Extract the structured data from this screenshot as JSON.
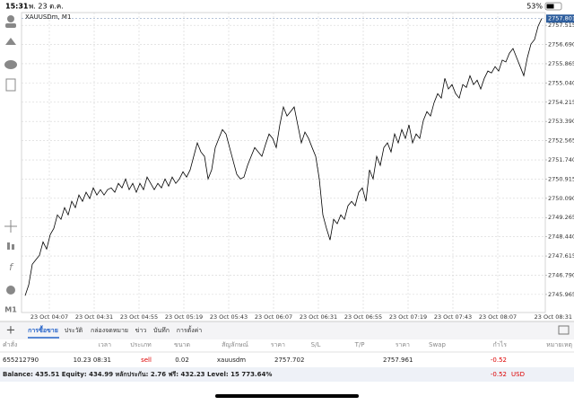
{
  "status_bar": {
    "time": "15:31",
    "date": "พ. 23 ต.ค.",
    "battery": "53%"
  },
  "chart_data": {
    "type": "line",
    "title": "XAUUSDm, M1",
    "color": "#000000",
    "grid": true,
    "x_labels": [
      "23 Oct 04:07",
      "23 Oct 04:31",
      "23 Oct 04:55",
      "23 Oct 05:19",
      "23 Oct 05:43",
      "23 Oct 06:07",
      "23 Oct 06:31",
      "23 Oct 06:55",
      "23 Oct 07:19",
      "23 Oct 07:43",
      "23 Oct 08:07",
      "23 Oct 08:31"
    ],
    "values": [
      2745.91,
      2746.37,
      2747.26,
      2747.45,
      2747.65,
      2748.22,
      2747.91,
      2748.53,
      2748.8,
      2749.38,
      2749.19,
      2749.69,
      2749.38,
      2749.96,
      2749.69,
      2750.23,
      2749.96,
      2750.35,
      2750.08,
      2750.54,
      2750.23,
      2750.46,
      2750.23,
      2750.46,
      2750.54,
      2750.35,
      2750.73,
      2750.54,
      2750.92,
      2750.46,
      2750.73,
      2750.35,
      2750.73,
      2750.46,
      2751.0,
      2750.73,
      2750.46,
      2750.73,
      2750.54,
      2750.92,
      2750.61,
      2751.0,
      2750.73,
      2750.92,
      2751.23,
      2751.0,
      2751.31,
      2751.89,
      2752.47,
      2752.08,
      2751.89,
      2750.92,
      2751.31,
      2752.27,
      2752.66,
      2753.04,
      2752.85,
      2752.27,
      2751.69,
      2751.12,
      2750.92,
      2751.0,
      2751.5,
      2751.89,
      2752.27,
      2752.08,
      2751.89,
      2752.39,
      2752.85,
      2752.66,
      2752.27,
      2753.24,
      2754.01,
      2753.62,
      2753.81,
      2754.01,
      2753.24,
      2752.47,
      2752.93,
      2752.66,
      2752.27,
      2751.89,
      2750.92,
      2749.38,
      2748.8,
      2748.3,
      2749.19,
      2749.0,
      2749.38,
      2749.19,
      2749.77,
      2749.96,
      2749.77,
      2750.35,
      2750.54,
      2749.96,
      2751.31,
      2750.92,
      2751.89,
      2751.5,
      2752.27,
      2752.47,
      2752.08,
      2752.85,
      2752.47,
      2753.04,
      2752.66,
      2753.24,
      2752.47,
      2752.85,
      2752.66,
      2753.43,
      2753.81,
      2753.62,
      2754.2,
      2754.58,
      2754.39,
      2755.24,
      2754.78,
      2754.97,
      2754.58,
      2754.39,
      2754.97,
      2754.85,
      2755.35,
      2754.97,
      2755.16,
      2754.78,
      2755.24,
      2755.55,
      2755.47,
      2755.74,
      2755.55,
      2756.02,
      2755.94,
      2756.32,
      2756.52,
      2756.13,
      2755.74,
      2755.35,
      2756.13,
      2756.71,
      2756.9,
      2757.48,
      2757.8
    ],
    "current_price": 2757.801,
    "ylim": [
      2745.19,
      2758.06
    ],
    "yticks": [
      2757.515,
      {
        "value": 2756.69,
        "label": "2756.690"
      },
      2755.865,
      {
        "value": 2755.04,
        "label": "2755.040"
      },
      2754.215,
      {
        "value": 2753.39,
        "label": "2753.390"
      },
      2752.565,
      {
        "value": 2751.74,
        "label": "2751.740"
      },
      2750.915,
      {
        "value": 2750.09,
        "label": "2750.090"
      },
      2749.265,
      {
        "value": 2748.44,
        "label": "2748.440"
      },
      2747.615,
      {
        "value": 2746.79,
        "label": "2746.790"
      },
      2745.965
    ]
  },
  "timeframe": "M1",
  "tabs": [
    "การซื้อขาย",
    "ประวัติ",
    "กล่องจดหมาย",
    "ข่าว",
    "บันทึก",
    "การตั้งค่า"
  ],
  "table": {
    "columns": [
      "คำสั่ง",
      "เวลา",
      "ประเภท",
      "ขนาด",
      "สัญลักษณ์",
      "ราคา",
      "S/L",
      "T/P",
      "ราคา",
      "Swap",
      "กำไร",
      "หมายเหตุ"
    ],
    "rows": [
      [
        "655212790",
        "10.23 08:31",
        "sell",
        "0.02",
        "xauusdm",
        "2757.702",
        null,
        null,
        "2757.961",
        null,
        "-0.52",
        null
      ]
    ]
  },
  "balance": {
    "text": "Balance: 435.51 Equity: 434.99 หลักประกัน: 2.76 ฟรี: 432.23 Level: 15 773.64%",
    "profit": "-0.52",
    "currency": "USD"
  }
}
